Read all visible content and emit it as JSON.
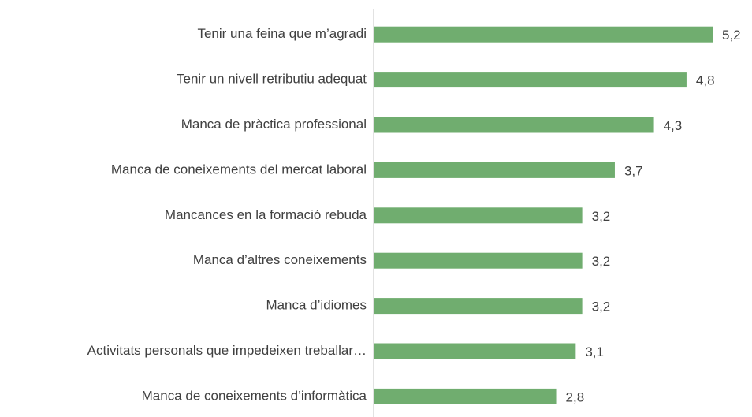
{
  "chart_data": {
    "type": "hbar",
    "categories": [
      "Tenir una feina que m’agradi",
      "Tenir un nivell retributiu adequat",
      "Manca de pràctica professional",
      "Manca de coneixements del mercat laboral",
      "Mancances en la formació rebuda",
      "Manca d’altres coneixements",
      "Manca d’idiomes",
      "Activitats personals que impedeixen treballar…",
      "Manca de coneixements d’informàtica"
    ],
    "values": [
      5.2,
      4.8,
      4.3,
      3.7,
      3.2,
      3.2,
      3.2,
      3.1,
      2.8
    ],
    "value_labels": [
      "5,2",
      "4,8",
      "4,3",
      "3,7",
      "3,2",
      "3,2",
      "3,2",
      "3,1",
      "2,8"
    ],
    "color": "#70ad6f"
  }
}
